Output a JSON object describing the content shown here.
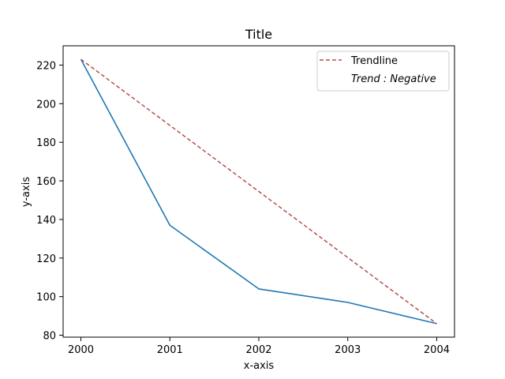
{
  "chart_data": {
    "type": "line",
    "title": "Title",
    "xlabel": "x-axis",
    "ylabel": "y-axis",
    "x": [
      2000,
      2001,
      2002,
      2003,
      2004
    ],
    "xticks": [
      "2000",
      "2001",
      "2002",
      "2003",
      "2004"
    ],
    "yticks": [
      80,
      100,
      120,
      140,
      160,
      180,
      200,
      220
    ],
    "xlim": [
      1999.8,
      2004.2
    ],
    "ylim": [
      79,
      230
    ],
    "grid": false,
    "legend_position": "top-right",
    "series": [
      {
        "values": [
          223,
          137,
          104,
          97,
          86
        ],
        "color": "#1f77b4",
        "style": "solid"
      }
    ],
    "trendline": {
      "name": "Trendline",
      "start": {
        "x": 2000,
        "y": 223
      },
      "end": {
        "x": 2004,
        "y": 86
      },
      "color": "#b5504f",
      "style": "dashed"
    },
    "annotation": "Trend : Negative"
  }
}
